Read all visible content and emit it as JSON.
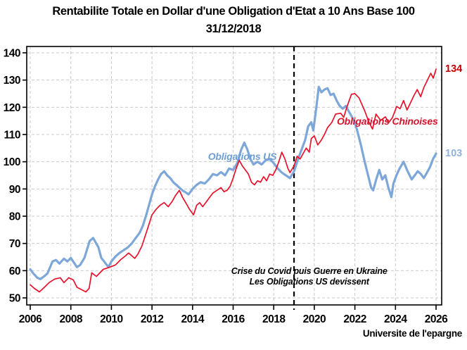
{
  "header": {
    "title_line1": "Rentabilite Totale en Dollar d'une Obligation d'Etat a 10 Ans Base 100",
    "title_line2": "31/12/2018"
  },
  "footer": {
    "attribution": "Universite de l'epargne"
  },
  "chart_data": {
    "type": "line",
    "title": "Rentabilite Totale en Dollar d'une Obligation d'Etat a 10 Ans Base 100",
    "subtitle": "31/12/2018",
    "xlabel": "",
    "ylabel": "",
    "xlim": [
      2006,
      2026.3
    ],
    "ylim": [
      50,
      140
    ],
    "x_ticks": [
      2006,
      2008,
      2010,
      2012,
      2014,
      2016,
      2018,
      2020,
      2022,
      2024,
      2026
    ],
    "y_ticks": [
      50,
      60,
      70,
      80,
      90,
      100,
      110,
      120,
      130,
      140
    ],
    "grid": true,
    "grid_color": "#c9c9c9",
    "axis_color": "#000000",
    "background": "#ffffff",
    "vline": {
      "x": 2019,
      "style": "dashed",
      "color": "#000000",
      "meaning": "base date 31/12/2018"
    },
    "annotation": {
      "line1": "Crise du Covid puis Guerre en Ukraine",
      "line2": "Les Obligations  US devissent",
      "x": 2019.75,
      "y1": 59.8,
      "y2": 55.9
    },
    "series": [
      {
        "name": "Obligations US",
        "color": "#7da7d9",
        "label_color": "#6f9ed2",
        "line_width": 3.2,
        "label_pos": {
          "x": 2016.45,
          "y": 102
        },
        "end_label": "103",
        "end_label_color": "#8fb3de",
        "points": [
          [
            2006.0,
            60.5
          ],
          [
            2006.15,
            59
          ],
          [
            2006.35,
            57.4
          ],
          [
            2006.5,
            56.9
          ],
          [
            2006.7,
            58
          ],
          [
            2006.85,
            59
          ],
          [
            2007.1,
            63.4
          ],
          [
            2007.27,
            63.9
          ],
          [
            2007.44,
            62.6
          ],
          [
            2007.66,
            64.4
          ],
          [
            2007.83,
            63.4
          ],
          [
            2008.0,
            64.7
          ],
          [
            2008.3,
            61.3
          ],
          [
            2008.46,
            62.1
          ],
          [
            2008.67,
            64.7
          ],
          [
            2008.93,
            70.9
          ],
          [
            2009.1,
            72
          ],
          [
            2009.36,
            68.6
          ],
          [
            2009.5,
            64.7
          ],
          [
            2009.67,
            63.1
          ],
          [
            2009.85,
            61.3
          ],
          [
            2010.0,
            63.4
          ],
          [
            2010.2,
            65.2
          ],
          [
            2010.4,
            66.5
          ],
          [
            2010.6,
            67.5
          ],
          [
            2010.8,
            68.5
          ],
          [
            2011.0,
            70
          ],
          [
            2011.2,
            72
          ],
          [
            2011.4,
            74
          ],
          [
            2011.55,
            76.5
          ],
          [
            2011.7,
            80
          ],
          [
            2011.85,
            84
          ],
          [
            2012.0,
            88
          ],
          [
            2012.15,
            91
          ],
          [
            2012.3,
            93.5
          ],
          [
            2012.45,
            95.5
          ],
          [
            2012.6,
            96.5
          ],
          [
            2012.75,
            95
          ],
          [
            2012.9,
            94
          ],
          [
            2013.05,
            92.5
          ],
          [
            2013.2,
            91.5
          ],
          [
            2013.35,
            90.5
          ],
          [
            2013.5,
            89.5
          ],
          [
            2013.65,
            88.8
          ],
          [
            2013.8,
            88
          ],
          [
            2014.0,
            90
          ],
          [
            2014.2,
            91.5
          ],
          [
            2014.4,
            92.5
          ],
          [
            2014.6,
            92
          ],
          [
            2014.8,
            93.5
          ],
          [
            2015.0,
            95.5
          ],
          [
            2015.2,
            95
          ],
          [
            2015.4,
            96.2
          ],
          [
            2015.6,
            95
          ],
          [
            2015.8,
            97.5
          ],
          [
            2016.0,
            97
          ],
          [
            2016.2,
            99.5
          ],
          [
            2016.4,
            104.5
          ],
          [
            2016.55,
            107
          ],
          [
            2016.7,
            104.5
          ],
          [
            2016.85,
            101
          ],
          [
            2017.0,
            99
          ],
          [
            2017.2,
            100
          ],
          [
            2017.4,
            99
          ],
          [
            2017.6,
            100.5
          ],
          [
            2017.8,
            101
          ],
          [
            2018.0,
            99.5
          ],
          [
            2018.2,
            97.5
          ],
          [
            2018.4,
            96
          ],
          [
            2018.6,
            95
          ],
          [
            2018.8,
            94
          ],
          [
            2019.0,
            96.5
          ],
          [
            2019.2,
            101
          ],
          [
            2019.4,
            105
          ],
          [
            2019.55,
            108
          ],
          [
            2019.7,
            113
          ],
          [
            2019.85,
            114.5
          ],
          [
            2019.95,
            111.5
          ],
          [
            2020.1,
            120
          ],
          [
            2020.22,
            127.5
          ],
          [
            2020.35,
            125.5
          ],
          [
            2020.5,
            126.5
          ],
          [
            2020.65,
            127
          ],
          [
            2020.8,
            124.5
          ],
          [
            2020.95,
            125
          ],
          [
            2021.1,
            122.5
          ],
          [
            2021.25,
            120.5
          ],
          [
            2021.4,
            119.5
          ],
          [
            2021.55,
            120.5
          ],
          [
            2021.7,
            118.5
          ],
          [
            2021.85,
            116.5
          ],
          [
            2022.0,
            114.5
          ],
          [
            2022.15,
            110.5
          ],
          [
            2022.3,
            106
          ],
          [
            2022.45,
            101
          ],
          [
            2022.6,
            96.5
          ],
          [
            2022.8,
            90.5
          ],
          [
            2022.9,
            89.5
          ],
          [
            2023.05,
            93.5
          ],
          [
            2023.2,
            97
          ],
          [
            2023.35,
            93.5
          ],
          [
            2023.5,
            95
          ],
          [
            2023.65,
            90.5
          ],
          [
            2023.8,
            87
          ],
          [
            2023.9,
            92
          ],
          [
            2024.05,
            95
          ],
          [
            2024.2,
            97.5
          ],
          [
            2024.4,
            100
          ],
          [
            2024.6,
            96.5
          ],
          [
            2024.8,
            93.5
          ],
          [
            2024.95,
            95
          ],
          [
            2025.1,
            96.5
          ],
          [
            2025.25,
            95.5
          ],
          [
            2025.4,
            94
          ],
          [
            2025.55,
            96
          ],
          [
            2025.7,
            98
          ],
          [
            2025.85,
            101
          ],
          [
            2026.0,
            103
          ]
        ]
      },
      {
        "name": "Obligations Chinoises",
        "color": "#e8112a",
        "label_color": "#d6122d",
        "line_width": 1.7,
        "label_pos": {
          "x": 2023.6,
          "y": 114.8
        },
        "end_label": "134",
        "end_label_color": "#c00000",
        "points": [
          [
            2006.0,
            54.8
          ],
          [
            2006.2,
            53.5
          ],
          [
            2006.45,
            52.2
          ],
          [
            2006.7,
            53.9
          ],
          [
            2006.93,
            55.6
          ],
          [
            2007.2,
            56.9
          ],
          [
            2007.48,
            57.4
          ],
          [
            2007.66,
            55.6
          ],
          [
            2007.9,
            57.4
          ],
          [
            2008.12,
            56.6
          ],
          [
            2008.3,
            53.9
          ],
          [
            2008.56,
            52.9
          ],
          [
            2008.74,
            52.2
          ],
          [
            2008.9,
            53.5
          ],
          [
            2009.03,
            59.2
          ],
          [
            2009.26,
            57.9
          ],
          [
            2009.6,
            60.5
          ],
          [
            2009.93,
            61.3
          ],
          [
            2010.2,
            62.1
          ],
          [
            2010.45,
            64
          ],
          [
            2010.7,
            65.5
          ],
          [
            2010.85,
            66.5
          ],
          [
            2011.0,
            65.5
          ],
          [
            2011.15,
            64.5
          ],
          [
            2011.3,
            66
          ],
          [
            2011.5,
            69
          ],
          [
            2011.7,
            73.5
          ],
          [
            2011.85,
            77
          ],
          [
            2012.0,
            80.5
          ],
          [
            2012.2,
            82.5
          ],
          [
            2012.4,
            84
          ],
          [
            2012.6,
            85
          ],
          [
            2012.8,
            83.5
          ],
          [
            2013.0,
            85.5
          ],
          [
            2013.15,
            87.5
          ],
          [
            2013.35,
            89.5
          ],
          [
            2013.5,
            87
          ],
          [
            2013.7,
            84.5
          ],
          [
            2013.85,
            82.5
          ],
          [
            2014.05,
            80.5
          ],
          [
            2014.2,
            84
          ],
          [
            2014.35,
            85
          ],
          [
            2014.5,
            83.5
          ],
          [
            2014.7,
            85.5
          ],
          [
            2014.85,
            87
          ],
          [
            2015.0,
            88.5
          ],
          [
            2015.2,
            89.5
          ],
          [
            2015.4,
            90.5
          ],
          [
            2015.55,
            89
          ],
          [
            2015.7,
            89.5
          ],
          [
            2015.85,
            91
          ],
          [
            2016.0,
            94
          ],
          [
            2016.15,
            97.5
          ],
          [
            2016.3,
            100.5
          ],
          [
            2016.45,
            98.5
          ],
          [
            2016.6,
            97
          ],
          [
            2016.75,
            95.5
          ],
          [
            2016.9,
            92.5
          ],
          [
            2017.05,
            91.5
          ],
          [
            2017.2,
            93
          ],
          [
            2017.35,
            92.5
          ],
          [
            2017.5,
            94.5
          ],
          [
            2017.65,
            93
          ],
          [
            2017.8,
            95.5
          ],
          [
            2017.95,
            95
          ],
          [
            2018.1,
            97
          ],
          [
            2018.25,
            100
          ],
          [
            2018.4,
            103.5
          ],
          [
            2018.55,
            101
          ],
          [
            2018.7,
            97.5
          ],
          [
            2018.8,
            96
          ],
          [
            2019.0,
            98.5
          ],
          [
            2019.15,
            102
          ],
          [
            2019.3,
            101
          ],
          [
            2019.45,
            103
          ],
          [
            2019.6,
            105
          ],
          [
            2019.75,
            103.5
          ],
          [
            2019.85,
            108.5
          ],
          [
            2020.0,
            109.5
          ],
          [
            2020.17,
            106.2
          ],
          [
            2020.35,
            108
          ],
          [
            2020.5,
            110
          ],
          [
            2020.65,
            112.5
          ],
          [
            2020.86,
            114.4
          ],
          [
            2021.05,
            117.5
          ],
          [
            2021.3,
            117.8
          ],
          [
            2021.45,
            116.3
          ],
          [
            2021.6,
            120
          ],
          [
            2021.83,
            124.8
          ],
          [
            2022.0,
            125
          ],
          [
            2022.2,
            123.5
          ],
          [
            2022.48,
            118.8
          ],
          [
            2022.7,
            114.4
          ],
          [
            2022.87,
            112
          ],
          [
            2023.04,
            117.5
          ],
          [
            2023.27,
            115.2
          ],
          [
            2023.5,
            116.5
          ],
          [
            2023.67,
            114.4
          ],
          [
            2023.85,
            116.2
          ],
          [
            2024.06,
            120.3
          ],
          [
            2024.23,
            119.5
          ],
          [
            2024.4,
            122.5
          ],
          [
            2024.57,
            119
          ],
          [
            2024.74,
            121.6
          ],
          [
            2024.9,
            124.2
          ],
          [
            2025.07,
            126.5
          ],
          [
            2025.24,
            123.9
          ],
          [
            2025.4,
            127.3
          ],
          [
            2025.57,
            129.9
          ],
          [
            2025.74,
            132.5
          ],
          [
            2025.86,
            130.7
          ],
          [
            2026.0,
            134
          ]
        ]
      }
    ]
  }
}
